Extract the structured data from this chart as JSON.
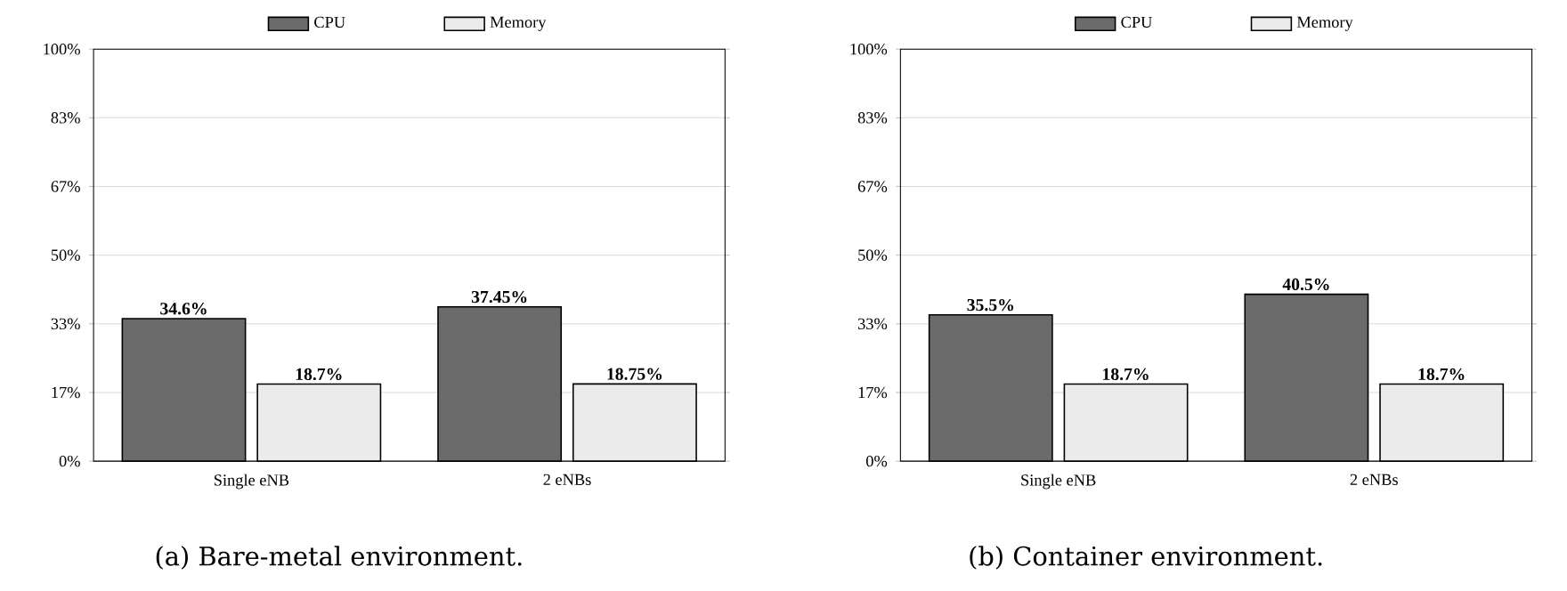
{
  "chart_data": [
    {
      "type": "bar",
      "categories": [
        "Single eNB",
        "2 eNBs"
      ],
      "series": [
        {
          "name": "CPU",
          "color": "#6b6b6b",
          "values": [
            34.6,
            37.45
          ],
          "value_labels": [
            "34.6%",
            "37.45%"
          ]
        },
        {
          "name": "Memory",
          "color": "#ebebeb",
          "values": [
            18.7,
            18.75
          ],
          "value_labels": [
            "18.7%",
            "18.75%"
          ]
        }
      ],
      "ylim": [
        0,
        100
      ],
      "yticks": [
        {
          "value": 0,
          "label": "0%"
        },
        {
          "value": 16.67,
          "label": "17%"
        },
        {
          "value": 33.33,
          "label": "33%"
        },
        {
          "value": 50,
          "label": "50%"
        },
        {
          "value": 66.67,
          "label": "67%"
        },
        {
          "value": 83.33,
          "label": "83%"
        },
        {
          "value": 100,
          "label": "100%"
        }
      ],
      "grid": "y",
      "legend": "top",
      "annotations": [
        "(a) Bare-metal environment."
      ]
    },
    {
      "type": "bar",
      "categories": [
        "Single eNB",
        "2 eNBs"
      ],
      "series": [
        {
          "name": "CPU",
          "color": "#6b6b6b",
          "values": [
            35.5,
            40.5
          ],
          "value_labels": [
            "35.5%",
            "40.5%"
          ]
        },
        {
          "name": "Memory",
          "color": "#ebebeb",
          "values": [
            18.7,
            18.7
          ],
          "value_labels": [
            "18.7%",
            "18.7%"
          ]
        }
      ],
      "ylim": [
        0,
        100
      ],
      "yticks": [
        {
          "value": 0,
          "label": "0%"
        },
        {
          "value": 16.67,
          "label": "17%"
        },
        {
          "value": 33.33,
          "label": "33%"
        },
        {
          "value": 50,
          "label": "50%"
        },
        {
          "value": 66.67,
          "label": "67%"
        },
        {
          "value": 83.33,
          "label": "83%"
        },
        {
          "value": 100,
          "label": "100%"
        }
      ],
      "grid": "y",
      "legend": "top",
      "annotations": [
        "(b) Container environment."
      ]
    }
  ]
}
